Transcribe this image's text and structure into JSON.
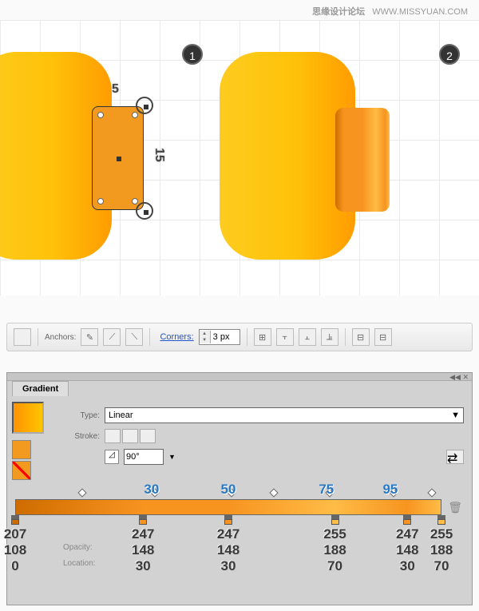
{
  "watermark": {
    "chinese": "思缘设计论坛",
    "url": "WWW.MISSYUAN.COM"
  },
  "stickers": {
    "s1": "1",
    "s2": "2"
  },
  "dimensions": {
    "width": "5",
    "height": "15"
  },
  "toolbar": {
    "anchors_label": "Anchors:",
    "corners_label": "Corners:",
    "corners_value": "3 px"
  },
  "gradient_panel": {
    "tab": "Gradient",
    "type_label": "Type:",
    "type_value": "Linear",
    "stroke_label": "Stroke:",
    "angle_value": "90°",
    "opacity_label": "Opacity:",
    "location_label": "Location:",
    "midpoints": [
      {
        "pos_pct": 15
      },
      {
        "pos_pct": 32,
        "label": "30"
      },
      {
        "pos_pct": 50,
        "label": "50"
      },
      {
        "pos_pct": 60
      },
      {
        "pos_pct": 73,
        "label": "75"
      },
      {
        "pos_pct": 88,
        "label": "95"
      },
      {
        "pos_pct": 97
      }
    ],
    "bar_gradient_css": "linear-gradient(90deg, #cf6c00 0%, #f79420 30%, #f79420 50%, #ffbc46 75%, #f79420 92%, #ffbc46 100%)",
    "stops": [
      {
        "pos_pct": 0,
        "color": "#cf6c00",
        "r": "207",
        "g": "108",
        "b": "0",
        "loc": ""
      },
      {
        "pos_pct": 30,
        "color": "#f79420",
        "r": "247",
        "g": "148",
        "b": "30",
        "loc": "30"
      },
      {
        "pos_pct": 50,
        "color": "#f79420",
        "r": "247",
        "g": "148",
        "b": "30",
        "loc": "30"
      },
      {
        "pos_pct": 75,
        "color": "#ffbc46",
        "r": "255",
        "g": "188",
        "b": "70",
        "loc": "70"
      },
      {
        "pos_pct": 92,
        "color": "#f79420",
        "r": "247",
        "g": "148",
        "b": "30",
        "loc": "30"
      },
      {
        "pos_pct": 100,
        "color": "#ffbc46",
        "r": "255",
        "g": "188",
        "b": "70",
        "loc": "70"
      }
    ]
  }
}
